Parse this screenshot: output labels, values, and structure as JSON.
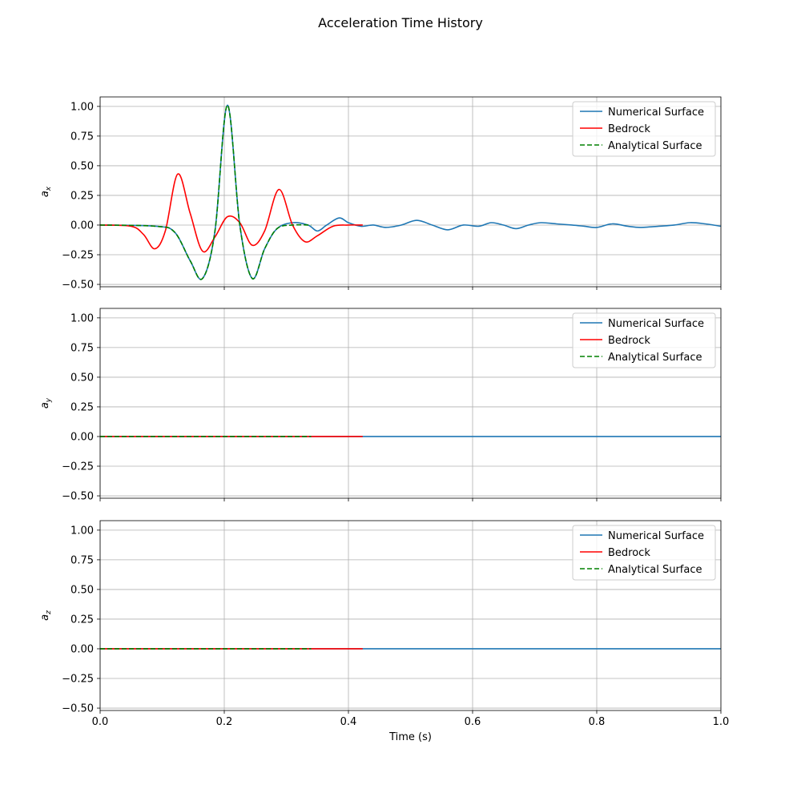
{
  "figure_title": "Acceleration Time History",
  "colors": {
    "numerical": "#1f77b4",
    "bedrock": "#ff0000",
    "analytical": "#008000",
    "grid": "#b0b0b0"
  },
  "legend_labels": [
    "Numerical Surface",
    "Bedrock",
    "Analytical Surface"
  ],
  "chart_data": [
    {
      "type": "line",
      "ylabel": "a",
      "ylabel_sub": "x",
      "xlabel": "",
      "xlim": [
        0.0,
        1.0
      ],
      "ylim": [
        -0.52,
        1.08
      ],
      "yticks": [
        "1.00",
        "0.75",
        "0.50",
        "0.25",
        "0.00",
        "−0.25",
        "−0.50"
      ],
      "xticks": [],
      "grid": true,
      "legend": "top-right",
      "series": [
        {
          "name": "Numerical Surface",
          "style": "solid",
          "x": [
            0.0,
            0.09,
            0.12,
            0.145,
            0.165,
            0.185,
            0.205,
            0.225,
            0.245,
            0.265,
            0.285,
            0.31,
            0.335,
            0.35,
            0.365,
            0.385,
            0.4,
            0.42,
            0.44,
            0.46,
            0.485,
            0.51,
            0.535,
            0.56,
            0.585,
            0.61,
            0.63,
            0.65,
            0.67,
            0.69,
            0.71,
            0.735,
            0.76,
            0.78,
            0.8,
            0.825,
            0.85,
            0.87,
            0.9,
            0.925,
            0.95,
            0.975,
            1.0
          ],
          "y": [
            0.0,
            -0.01,
            -0.06,
            -0.3,
            -0.45,
            -0.05,
            1.01,
            0.0,
            -0.45,
            -0.2,
            -0.03,
            0.02,
            0.0,
            -0.05,
            0.0,
            0.06,
            0.02,
            -0.01,
            0.0,
            -0.02,
            0.0,
            0.04,
            0.0,
            -0.04,
            0.0,
            -0.01,
            0.02,
            0.0,
            -0.03,
            0.0,
            0.02,
            0.01,
            0.0,
            -0.01,
            -0.02,
            0.01,
            -0.01,
            -0.02,
            -0.01,
            0.0,
            0.02,
            0.01,
            -0.01
          ]
        },
        {
          "name": "Bedrock",
          "style": "solid",
          "x": [
            0.0,
            0.05,
            0.07,
            0.088,
            0.105,
            0.125,
            0.145,
            0.165,
            0.185,
            0.205,
            0.225,
            0.245,
            0.265,
            0.288,
            0.31,
            0.33,
            0.35,
            0.375,
            0.4,
            0.423
          ],
          "y": [
            0.0,
            -0.01,
            -0.08,
            -0.2,
            -0.05,
            0.43,
            0.1,
            -0.22,
            -0.1,
            0.07,
            0.02,
            -0.17,
            -0.05,
            0.3,
            0.0,
            -0.14,
            -0.09,
            -0.01,
            0.0,
            0.0
          ]
        },
        {
          "name": "Analytical Surface",
          "style": "dashed",
          "x": [
            0.0,
            0.09,
            0.12,
            0.145,
            0.165,
            0.185,
            0.205,
            0.225,
            0.245,
            0.265,
            0.285,
            0.31,
            0.34
          ],
          "y": [
            0.0,
            -0.01,
            -0.06,
            -0.3,
            -0.45,
            -0.05,
            1.01,
            0.0,
            -0.45,
            -0.2,
            -0.03,
            0.0,
            0.0
          ]
        }
      ]
    },
    {
      "type": "line",
      "ylabel": "a",
      "ylabel_sub": "y",
      "xlabel": "",
      "xlim": [
        0.0,
        1.0
      ],
      "ylim": [
        -0.52,
        1.08
      ],
      "yticks": [
        "1.00",
        "0.75",
        "0.50",
        "0.25",
        "0.00",
        "−0.25",
        "−0.50"
      ],
      "xticks": [],
      "grid": true,
      "legend": "top-right",
      "series": [
        {
          "name": "Numerical Surface",
          "style": "solid",
          "x": [
            0.0,
            1.0
          ],
          "y": [
            0.0,
            0.0
          ]
        },
        {
          "name": "Bedrock",
          "style": "solid",
          "x": [
            0.0,
            0.423
          ],
          "y": [
            0.0,
            0.0
          ]
        },
        {
          "name": "Analytical Surface",
          "style": "dashed",
          "x": [
            0.0,
            0.34
          ],
          "y": [
            0.0,
            0.0
          ]
        }
      ]
    },
    {
      "type": "line",
      "ylabel": "a",
      "ylabel_sub": "z",
      "xlabel": "Time (s)",
      "xlim": [
        0.0,
        1.0
      ],
      "ylim": [
        -0.52,
        1.08
      ],
      "yticks": [
        "1.00",
        "0.75",
        "0.50",
        "0.25",
        "0.00",
        "−0.25",
        "−0.50"
      ],
      "xticks": [
        "0.0",
        "0.2",
        "0.4",
        "0.6",
        "0.8",
        "1.0"
      ],
      "grid": true,
      "legend": "top-right",
      "series": [
        {
          "name": "Numerical Surface",
          "style": "solid",
          "x": [
            0.0,
            1.0
          ],
          "y": [
            0.0,
            0.0
          ]
        },
        {
          "name": "Bedrock",
          "style": "solid",
          "x": [
            0.0,
            0.423
          ],
          "y": [
            0.0,
            0.0
          ]
        },
        {
          "name": "Analytical Surface",
          "style": "dashed",
          "x": [
            0.0,
            0.34
          ],
          "y": [
            0.0,
            0.0
          ]
        }
      ]
    }
  ]
}
